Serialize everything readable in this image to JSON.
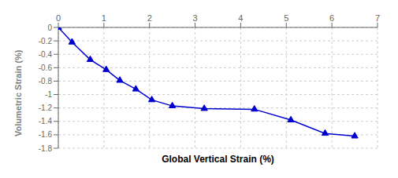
{
  "chart_data": {
    "type": "line",
    "xlabel": "Global Vertical Strain (%)",
    "ylabel": "Volumetric Strain (%)",
    "x": [
      0,
      0.3,
      0.7,
      1.05,
      1.35,
      1.7,
      2.05,
      2.5,
      3.2,
      4.3,
      5.1,
      5.85,
      6.5
    ],
    "values": [
      0,
      -0.22,
      -0.48,
      -0.63,
      -0.79,
      -0.92,
      -1.08,
      -1.17,
      -1.21,
      -1.22,
      -1.38,
      -1.58,
      -1.62
    ],
    "color": "#0000CD",
    "marker": "triangle",
    "xlim": [
      0,
      7
    ],
    "ylim": [
      -1.8,
      0
    ],
    "xticks": [
      0,
      1,
      2,
      3,
      4,
      5,
      6,
      7
    ],
    "yticks": [
      0,
      -0.2,
      -0.4,
      -0.6,
      -0.8,
      -1.0,
      -1.2,
      -1.4,
      -1.6,
      -1.8
    ],
    "grid": true
  }
}
